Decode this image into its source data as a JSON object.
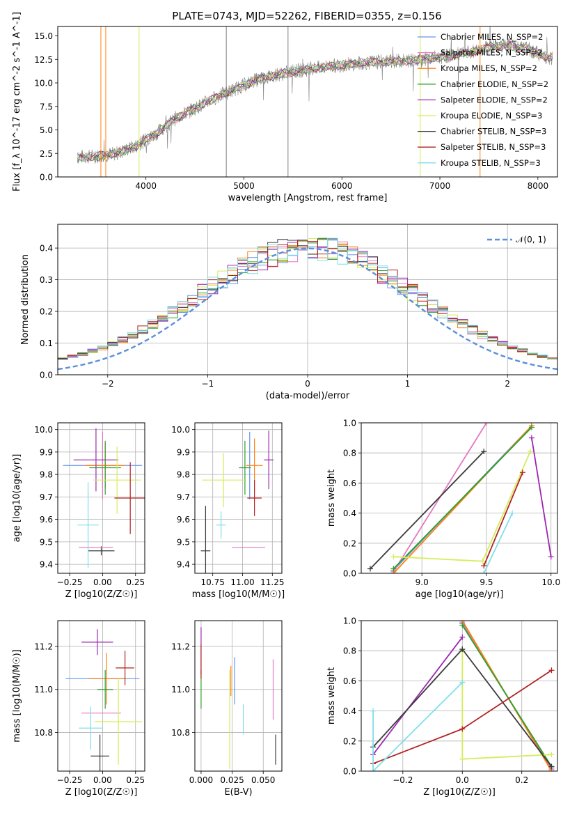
{
  "figure_title": "PLATE=0743, MJD=52262, FIBERID=0355, z=0.156",
  "palette": {
    "c0": "#6495ed",
    "c1": "#e377c2",
    "c2": "#ff7f0e",
    "c3": "#2ca02c",
    "c4": "#9c27b0",
    "c5": "#d4ed5a",
    "c6": "#3a3a3a",
    "c7": "#b22222",
    "c8": "#80deea",
    "data": "#808080",
    "norm": "#5b8fd9",
    "grid": "#b0b0b0"
  },
  "chart_data": [
    {
      "id": "spectrum",
      "type": "line",
      "title": "PLATE=0743, MJD=52262, FIBERID=0355, z=0.156",
      "xlabel": "wavelength [Angstrom, rest frame]",
      "ylabel": "Flux [f_λ 10^-17 erg cm^-2 s^-1 A^-1]",
      "xlim": [
        3100,
        8200
      ],
      "ylim": [
        0,
        16
      ],
      "xticks": [
        "4000",
        "5000",
        "6000",
        "7000",
        "8000"
      ],
      "yticks": [
        "0.0",
        "2.5",
        "5.0",
        "7.5",
        "10.0",
        "12.5",
        "15.0"
      ],
      "grid": false,
      "legend": "upper right",
      "continuum_x": [
        3300,
        3500,
        3700,
        3900,
        4100,
        4300,
        4500,
        4700,
        4900,
        5100,
        5300,
        5500,
        5700,
        5900,
        6100,
        6300,
        6500,
        6700,
        6900,
        7100,
        7300,
        7500,
        7700,
        7900,
        8100
      ],
      "continuum_y": [
        2.1,
        2.2,
        2.5,
        3.3,
        4.6,
        6.2,
        7.3,
        8.4,
        9.3,
        10.2,
        10.8,
        11.2,
        11.5,
        11.8,
        12.0,
        12.2,
        12.3,
        12.4,
        12.6,
        12.9,
        13.2,
        13.8,
        14.0,
        13.6,
        12.7
      ],
      "series": [
        {
          "name": "Chabrier MILES, N_SSP=2",
          "color_key": "c0"
        },
        {
          "name": "Salpeter MILES, N_SSP=2",
          "color_key": "c1"
        },
        {
          "name": "Kroupa MILES, N_SSP=2",
          "color_key": "c2"
        },
        {
          "name": "Chabrier ELODIE, N_SSP=2",
          "color_key": "c3"
        },
        {
          "name": "Salpeter ELODIE, N_SSP=2",
          "color_key": "c4"
        },
        {
          "name": "Kroupa ELODIE, N_SSP=3",
          "color_key": "c5"
        },
        {
          "name": "Chabrier STELIB, N_SSP=3",
          "color_key": "c6"
        },
        {
          "name": "Salpeter STELIB, N_SSP=3",
          "color_key": "c7"
        },
        {
          "name": "Kroupa STELIB, N_SSP=3",
          "color_key": "c8"
        }
      ]
    },
    {
      "id": "residuals",
      "type": "line",
      "xlabel": "(data-model)/error",
      "ylabel": "Normed distribution",
      "xlim": [
        -2.5,
        2.5
      ],
      "ylim": [
        0,
        0.475
      ],
      "xticks": [
        "−2",
        "−1",
        "0",
        "1",
        "2"
      ],
      "yticks": [
        "0.0",
        "0.1",
        "0.2",
        "0.3",
        "0.4"
      ],
      "grid": true,
      "legend": "upper right",
      "normal_label": "𝒩(0, 1)"
    },
    {
      "id": "age_vs_Z",
      "type": "scatter",
      "xlabel": "Z [log10(Z/Z☉)]",
      "ylabel": "age [log10(age/yr)]",
      "xlim": [
        -0.34,
        0.32
      ],
      "ylim": [
        9.36,
        10.03
      ],
      "xticks": [
        "−0.25",
        "0.00",
        "0.25"
      ],
      "yticks": [
        "9.4",
        "9.5",
        "9.6",
        "9.7",
        "9.8",
        "9.9",
        "10.0"
      ],
      "grid": true,
      "points": [
        {
          "x": 0.0,
          "xerr": 0.3,
          "y": 9.84,
          "yerr": 0.1,
          "color_key": "c0"
        },
        {
          "x": 0.0,
          "xerr": 0.15,
          "y": 9.84,
          "yerr": 0.15,
          "color_key": "c1"
        },
        {
          "x": 0.02,
          "xerr": 0.15,
          "y": 9.84,
          "yerr": 0.1,
          "color_key": "c2"
        },
        {
          "x": 0.02,
          "xerr": 0.12,
          "y": 9.83,
          "yerr": 0.12,
          "color_key": "c3"
        },
        {
          "x": -0.05,
          "xerr": 0.17,
          "y": 9.865,
          "yerr": 0.14,
          "color_key": "c4"
        },
        {
          "x": 0.11,
          "xerr": 0.18,
          "y": 9.775,
          "yerr": 0.15,
          "color_key": "c5"
        },
        {
          "x": -0.01,
          "xerr": 0.1,
          "y": 9.46,
          "yerr": 0.02,
          "color_key": "c6"
        },
        {
          "x": 0.21,
          "xerr": 0.12,
          "y": 9.695,
          "yerr": 0.16,
          "color_key": "c7"
        },
        {
          "x": -0.11,
          "xerr": 0.08,
          "y": 9.575,
          "yerr": 0.19,
          "color_key": "c8"
        },
        {
          "x": -0.05,
          "xerr": 0.13,
          "y": 9.475,
          "yerr": 0.0,
          "color_key": "c1"
        }
      ]
    },
    {
      "id": "age_vs_mass",
      "type": "scatter",
      "xlabel": "mass [log10(M/M☉)]",
      "ylabel": "",
      "xlim": [
        10.6,
        11.33
      ],
      "ylim": [
        9.36,
        10.03
      ],
      "xticks": [
        "10.75",
        "11.00",
        "11.25"
      ],
      "yticks": [
        "9.4",
        "9.5",
        "9.6",
        "9.7",
        "9.8",
        "9.9",
        "10.0"
      ],
      "grid": true,
      "points": [
        {
          "x": 11.06,
          "xerr": 0.0,
          "y": 9.84,
          "yerr": 0.15,
          "color_key": "c0"
        },
        {
          "x": 11.05,
          "xerr": 0.14,
          "y": 9.475,
          "yerr": 0.0,
          "color_key": "c1"
        },
        {
          "x": 11.1,
          "xerr": 0.07,
          "y": 9.84,
          "yerr": 0.12,
          "color_key": "c2"
        },
        {
          "x": 11.02,
          "xerr": 0.05,
          "y": 9.83,
          "yerr": 0.12,
          "color_key": "c3"
        },
        {
          "x": 11.22,
          "xerr": 0.04,
          "y": 9.865,
          "yerr": 0.13,
          "color_key": "c4"
        },
        {
          "x": 10.84,
          "xerr": 0.18,
          "y": 9.775,
          "yerr": 0.12,
          "color_key": "c5"
        },
        {
          "x": 10.69,
          "xerr": 0.04,
          "y": 9.46,
          "yerr": 0.2,
          "color_key": "c6"
        },
        {
          "x": 11.1,
          "xerr": 0.06,
          "y": 9.695,
          "yerr": 0.08,
          "color_key": "c7"
        },
        {
          "x": 10.82,
          "xerr": 0.04,
          "y": 9.575,
          "yerr": 0.06,
          "color_key": "c8"
        }
      ]
    },
    {
      "id": "weight_vs_age",
      "type": "line",
      "xlabel": "age [log10(age/yr)]",
      "ylabel": "mass weight",
      "xlim": [
        8.53,
        10.05
      ],
      "ylim": [
        0,
        1
      ],
      "xticks": [
        "9.0",
        "9.5",
        "10.0"
      ],
      "yticks": [
        "0.0",
        "0.2",
        "0.4",
        "0.6",
        "0.8",
        "1.0"
      ],
      "grid": true,
      "series": [
        {
          "color_key": "c0",
          "x": [
            8.78,
            9.85
          ],
          "y": [
            0.02,
            0.98
          ]
        },
        {
          "color_key": "c1",
          "x": [
            8.78,
            9.5
          ],
          "y": [
            0.01,
            1.0
          ]
        },
        {
          "color_key": "c2",
          "x": [
            8.78,
            9.85
          ],
          "y": [
            0.0,
            0.98
          ]
        },
        {
          "color_key": "c3",
          "x": [
            8.78,
            9.85
          ],
          "y": [
            0.03,
            0.97
          ]
        },
        {
          "color_key": "c4",
          "x": [
            9.85,
            10.0
          ],
          "y": [
            0.9,
            0.11
          ]
        },
        {
          "color_key": "c5",
          "x": [
            8.78,
            9.47,
            9.84
          ],
          "y": [
            0.11,
            0.08,
            0.81
          ]
        },
        {
          "color_key": "c6",
          "x": [
            8.6,
            9.48
          ],
          "y": [
            0.03,
            0.81
          ]
        },
        {
          "color_key": "c7",
          "x": [
            9.48,
            9.78
          ],
          "y": [
            0.05,
            0.67
          ]
        },
        {
          "color_key": "c8",
          "x": [
            9.48,
            9.7
          ],
          "y": [
            0.0,
            0.4
          ]
        }
      ]
    },
    {
      "id": "mass_vs_Z",
      "type": "scatter",
      "xlabel": "Z [log10(Z/Z☉)]",
      "ylabel": "mass [log10(M/M☉)]",
      "xlim": [
        -0.34,
        0.32
      ],
      "ylim": [
        10.62,
        11.32
      ],
      "xticks": [
        "−0.25",
        "0.00",
        "0.25"
      ],
      "yticks": [
        "10.8",
        "11.0",
        "11.2"
      ],
      "grid": true,
      "points": [
        {
          "x": 0.0,
          "xerr": 0.28,
          "y": 11.05,
          "yerr": 0.0,
          "color_key": "c0"
        },
        {
          "x": -0.01,
          "xerr": 0.15,
          "y": 10.89,
          "yerr": 0.0,
          "color_key": "c1"
        },
        {
          "x": 0.03,
          "xerr": 0.14,
          "y": 11.05,
          "yerr": 0.12,
          "color_key": "c2"
        },
        {
          "x": 0.02,
          "xerr": 0.06,
          "y": 11.0,
          "yerr": 0.09,
          "color_key": "c3"
        },
        {
          "x": -0.04,
          "xerr": 0.12,
          "y": 11.22,
          "yerr": 0.06,
          "color_key": "c4"
        },
        {
          "x": 0.12,
          "xerr": 0.18,
          "y": 10.85,
          "yerr": 0.2,
          "color_key": "c5"
        },
        {
          "x": -0.02,
          "xerr": 0.07,
          "y": 10.69,
          "yerr": 0.1,
          "color_key": "c6"
        },
        {
          "x": 0.17,
          "xerr": 0.07,
          "y": 11.1,
          "yerr": 0.08,
          "color_key": "c7"
        },
        {
          "x": -0.09,
          "xerr": 0.09,
          "y": 10.82,
          "yerr": 0.1,
          "color_key": "c8"
        }
      ]
    },
    {
      "id": "mass_vs_ebv",
      "type": "scatter",
      "xlabel": "E(B-V)",
      "ylabel": "",
      "xlim": [
        -0.005,
        0.065
      ],
      "ylim": [
        10.62,
        11.32
      ],
      "xticks": [
        "0.000",
        "0.025",
        "0.050"
      ],
      "yticks": [
        "10.8",
        "11.0",
        "11.2"
      ],
      "grid": true,
      "points": [
        {
          "x": 0.027,
          "y": 11.04,
          "yerr": 0.11,
          "color_key": "c0"
        },
        {
          "x": 0.058,
          "y": 11.0,
          "yerr": 0.14,
          "color_key": "c1"
        },
        {
          "x": 0.024,
          "y": 11.04,
          "yerr": 0.07,
          "color_key": "c2"
        },
        {
          "x": 0.0,
          "y": 11.0,
          "yerr": 0.09,
          "color_key": "c3"
        },
        {
          "x": 0.0,
          "y": 11.18,
          "yerr": 0.11,
          "color_key": "c4"
        },
        {
          "x": 0.023,
          "y": 10.86,
          "yerr": 0.23,
          "color_key": "c5"
        },
        {
          "x": 0.06,
          "y": 10.72,
          "yerr": 0.07,
          "color_key": "c6"
        },
        {
          "x": 0.0,
          "y": 11.13,
          "yerr": 0.08,
          "color_key": "c7"
        },
        {
          "x": 0.034,
          "y": 10.86,
          "yerr": 0.07,
          "color_key": "c8"
        }
      ]
    },
    {
      "id": "weight_vs_Z",
      "type": "line",
      "xlabel": "Z [log10(Z/Z☉)]",
      "ylabel": "mass weight",
      "xlim": [
        -0.34,
        0.32
      ],
      "ylim": [
        0,
        1
      ],
      "xticks": [
        "−0.2",
        "0.0",
        "0.2"
      ],
      "yticks": [
        "0.0",
        "0.2",
        "0.4",
        "0.6",
        "0.8",
        "1.0"
      ],
      "grid": true,
      "series": [
        {
          "color_key": "c0",
          "x": [
            0.0,
            0.3
          ],
          "y": [
            0.98,
            0.02
          ]
        },
        {
          "color_key": "c1",
          "x": [
            0.0,
            0.3
          ],
          "y": [
            0.99,
            0.01
          ]
        },
        {
          "color_key": "c2",
          "x": [
            0.0,
            0.3
          ],
          "y": [
            1.0,
            0.0
          ]
        },
        {
          "color_key": "c3",
          "x": [
            0.0,
            0.3
          ],
          "y": [
            0.97,
            0.03
          ]
        },
        {
          "color_key": "c4",
          "x": [
            -0.3,
            0.0
          ],
          "y": [
            0.11,
            0.89
          ]
        },
        {
          "color_key": "c5",
          "x": [
            0.0,
            0.0,
            0.3
          ],
          "y": [
            0.81,
            0.08,
            0.11
          ]
        },
        {
          "color_key": "c6",
          "x": [
            -0.3,
            0.0,
            0.3
          ],
          "y": [
            0.16,
            0.81,
            0.03
          ]
        },
        {
          "color_key": "c7",
          "x": [
            -0.3,
            0.0,
            0.3
          ],
          "y": [
            0.05,
            0.28,
            0.67
          ]
        },
        {
          "color_key": "c8",
          "x": [
            -0.3,
            -0.3,
            0.0
          ],
          "y": [
            0.4,
            0.0,
            0.59
          ]
        }
      ]
    }
  ]
}
